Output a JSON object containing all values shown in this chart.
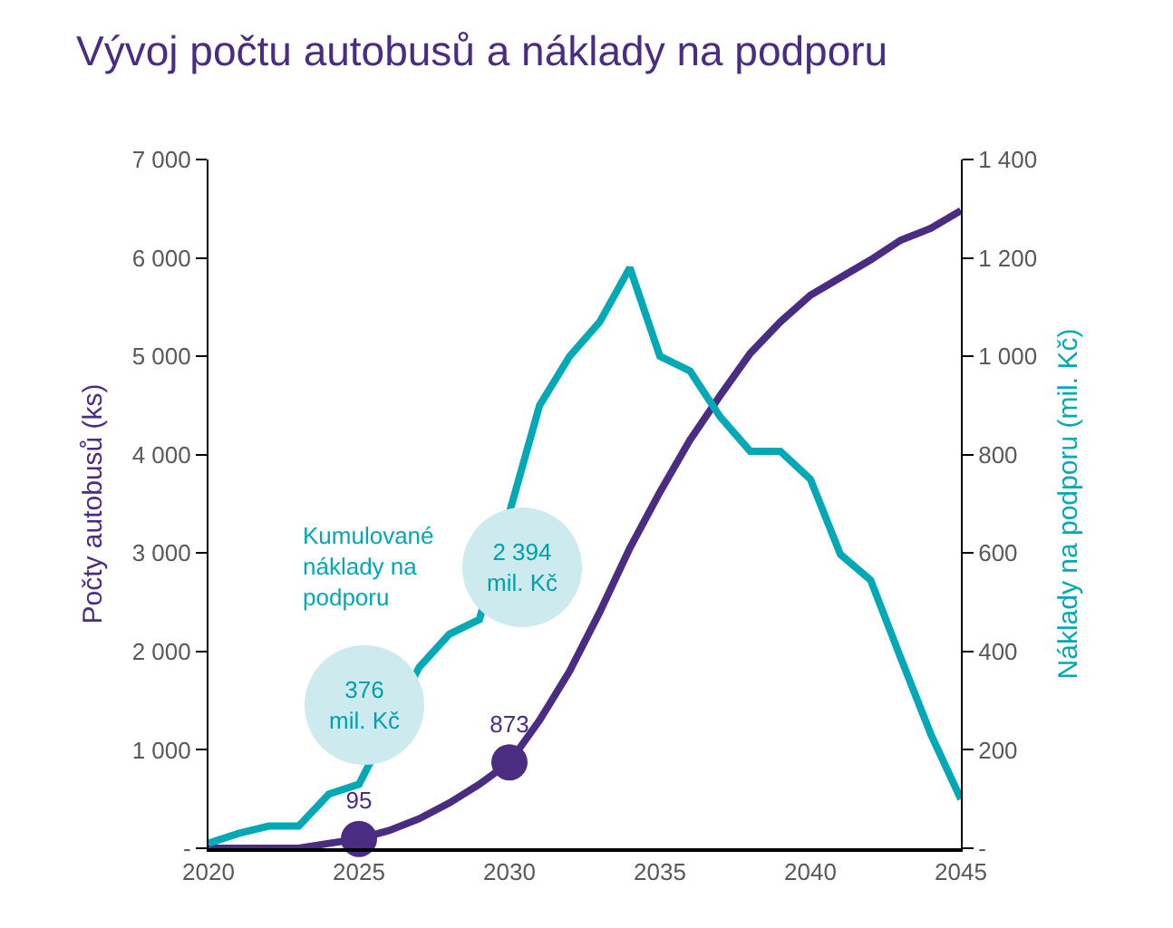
{
  "chart_data": {
    "type": "line",
    "title": "Vývoj počtu autobusů a náklady na podporu",
    "ylabel": "Počty autobusů (ks)",
    "y2label": "Náklady na podporu (mil. Kč)",
    "x": [
      2020,
      2021,
      2022,
      2023,
      2024,
      2025,
      2026,
      2027,
      2028,
      2029,
      2030,
      2031,
      2032,
      2033,
      2034,
      2035,
      2036,
      2037,
      2038,
      2039,
      2040,
      2041,
      2042,
      2043,
      2044,
      2045
    ],
    "series": [
      {
        "color": "#4b2c83",
        "values": [
          0,
          0,
          0,
          0,
          50,
          95,
          180,
          300,
          460,
          650,
          873,
          1300,
          1800,
          2400,
          3050,
          3620,
          4150,
          4600,
          5030,
          5350,
          5620,
          5800,
          5980,
          6180,
          6300,
          6480
        ]
      },
      {
        "type": "line",
        "color": "#00a9b5",
        "axis": "y2",
        "values": [
          10,
          30,
          45,
          45,
          110,
          130,
          null,
          368,
          435,
          465,
          null,
          900,
          1000,
          1070,
          1180,
          1000,
          970,
          877,
          807,
          807,
          750,
          597,
          545,
          387,
          232,
          100
        ]
      },
      {
        "type": "scatter",
        "color": "#4b2c83",
        "x": [
          2025,
          2030
        ],
        "values": [
          95,
          873
        ],
        "value_labels": [
          "95",
          "873"
        ]
      }
    ],
    "annotations": [
      "Kumulované\nnáklady na\npodporu",
      "376\nmil. Kč",
      "2 394\nmil. Kč"
    ],
    "xlim": [
      2020,
      2045
    ],
    "xticks": [
      2020,
      2025,
      2030,
      2035,
      2040,
      2045
    ],
    "ylim": [
      0,
      7000
    ],
    "yticks": [
      {
        "value": 0,
        "label": "-"
      },
      {
        "value": 1000,
        "label": "1 000"
      },
      {
        "value": 2000,
        "label": "2 000"
      },
      {
        "value": 3000,
        "label": "3 000"
      },
      {
        "value": 4000,
        "label": "4 000"
      },
      {
        "value": 5000,
        "label": "5 000"
      },
      {
        "value": 6000,
        "label": "6 000"
      },
      {
        "value": 7000,
        "label": "7 000"
      }
    ],
    "y2lim": [
      0,
      1400
    ],
    "y2ticks": [
      {
        "value": 0,
        "label": "-"
      },
      200,
      400,
      600,
      800,
      {
        "value": 1000,
        "label": "1 000"
      },
      {
        "value": 1200,
        "label": "1 200"
      },
      {
        "value": 1400,
        "label": "1 400"
      }
    ],
    "grid": false,
    "legend": false,
    "line_style": "solid"
  }
}
